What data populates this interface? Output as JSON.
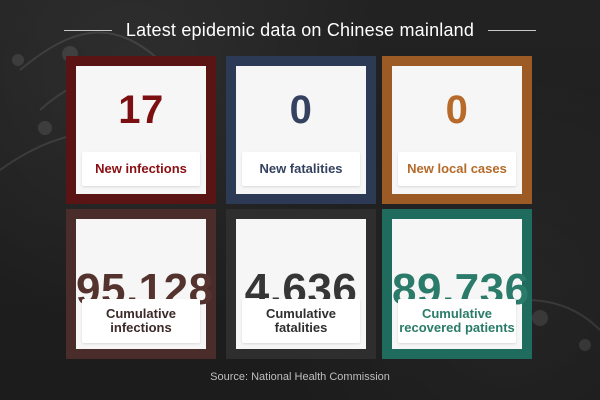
{
  "header": {
    "title": "Latest epidemic data on Chinese mainland"
  },
  "cards": [
    {
      "value": "17",
      "label": "New infections"
    },
    {
      "value": "0",
      "label": "New fatalities"
    },
    {
      "value": "0",
      "label": "New local cases"
    },
    {
      "value": "95,128",
      "label": "Cumulative infections"
    },
    {
      "value": "4,636",
      "label": "Cumulative fatalities"
    },
    {
      "value": "89,736",
      "label": "Cumulative recovered patients"
    }
  ],
  "footer": {
    "source": "Source: National Health Commission"
  },
  "colors": {
    "background": "#1f1f1f",
    "infections": "#7b0f12",
    "fatalities": "#34425f",
    "local_cases": "#b86a2a",
    "cumulative_infections": "#54332f",
    "cumulative_fatalities": "#363636",
    "recovered": "#2b7b6a"
  }
}
